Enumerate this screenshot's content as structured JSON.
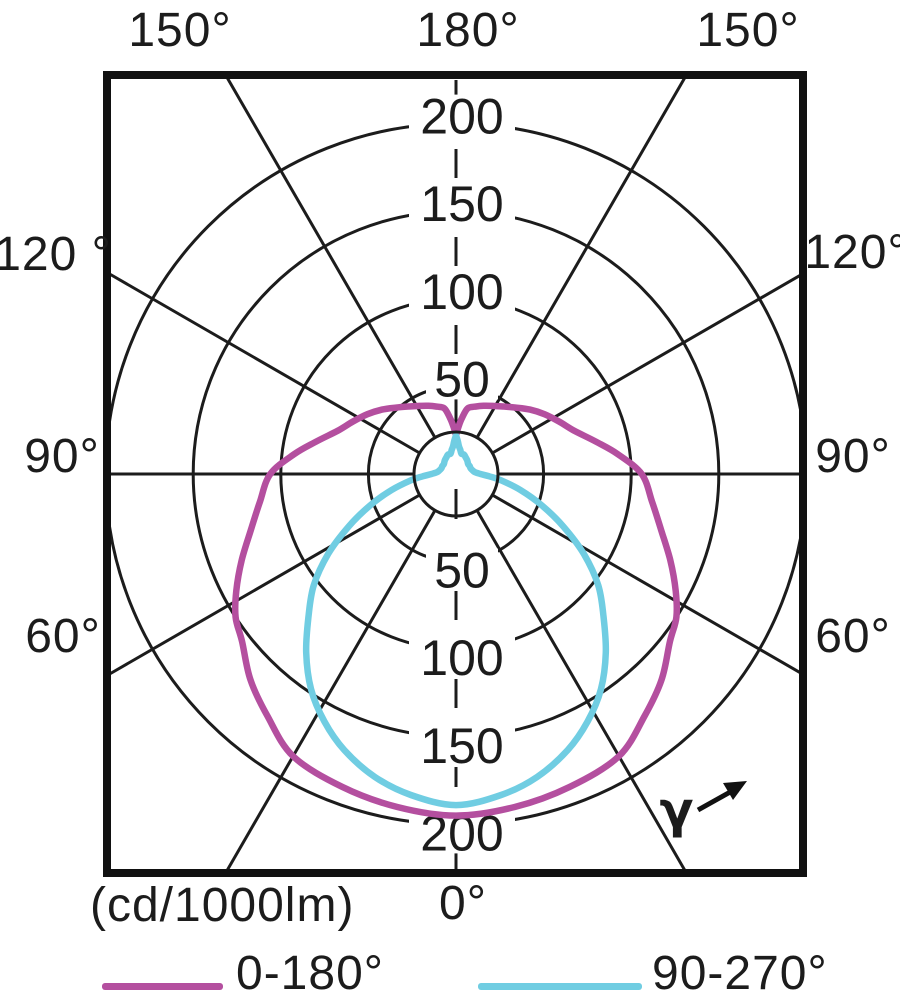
{
  "colors": {
    "grid": "#1c1c1c",
    "frame": "#111111",
    "text": "#1c1c1c",
    "background": "#ffffff",
    "magenta": "#b44f9f",
    "cyan": "#70cde2"
  },
  "chart_data": {
    "type": "polar",
    "description": "Luminous intensity distribution curve (polar candela diagram)",
    "units_label": "(cd/1000lm)",
    "radial_unit": "cd/1000lm",
    "radial_ticks": [
      50,
      100,
      150,
      200
    ],
    "radial_max": 200,
    "angle_tick_step_deg": 30,
    "angle_labels": {
      "top": [
        "150°",
        "180°",
        "150°"
      ],
      "left": [
        "120 °",
        "90°",
        "60°"
      ],
      "right": [
        "120°",
        "90°",
        "60°"
      ],
      "bottom": [
        "0°"
      ]
    },
    "gamma_symbol": "γ",
    "grid": true,
    "legend_position": "bottom",
    "series": [
      {
        "name": "0-180°",
        "color": "#b44f9f",
        "symmetric_mirror": true,
        "points_gamma_cd": [
          [
            0,
            195
          ],
          [
            10,
            193
          ],
          [
            20,
            190
          ],
          [
            30,
            186
          ],
          [
            38,
            175
          ],
          [
            45,
            166
          ],
          [
            52,
            155
          ],
          [
            57,
            150
          ],
          [
            62,
            142
          ],
          [
            68,
            132
          ],
          [
            75,
            121
          ],
          [
            82,
            113
          ],
          [
            90,
            106
          ],
          [
            97,
            93
          ],
          [
            103,
            82
          ],
          [
            110,
            72
          ],
          [
            117,
            66
          ],
          [
            124,
            61
          ],
          [
            131,
            56
          ],
          [
            138,
            51
          ],
          [
            145,
            47
          ],
          [
            152,
            44
          ],
          [
            158,
            42
          ],
          [
            164,
            40
          ],
          [
            170,
            38
          ],
          [
            174,
            32
          ],
          [
            177,
            27
          ],
          [
            180,
            22
          ]
        ]
      },
      {
        "name": "90-270°",
        "color": "#70cde2",
        "symmetric_mirror": true,
        "points_gamma_cd": [
          [
            0,
            189
          ],
          [
            8,
            185
          ],
          [
            15,
            179
          ],
          [
            22,
            170
          ],
          [
            28,
            160
          ],
          [
            34,
            148
          ],
          [
            40,
            133
          ],
          [
            46,
            117
          ],
          [
            52,
            103
          ],
          [
            58,
            86
          ],
          [
            64,
            68
          ],
          [
            70,
            52
          ],
          [
            76,
            38
          ],
          [
            82,
            26
          ],
          [
            86,
            19
          ],
          [
            90,
            14
          ],
          [
            95,
            11
          ],
          [
            100,
            10
          ],
          [
            110,
            9
          ],
          [
            120,
            9
          ],
          [
            130,
            9
          ],
          [
            140,
            10
          ],
          [
            150,
            11
          ],
          [
            158,
            12
          ],
          [
            165,
            12
          ],
          [
            170,
            14
          ],
          [
            174,
            16
          ],
          [
            177,
            19
          ],
          [
            180,
            22
          ]
        ]
      }
    ]
  }
}
